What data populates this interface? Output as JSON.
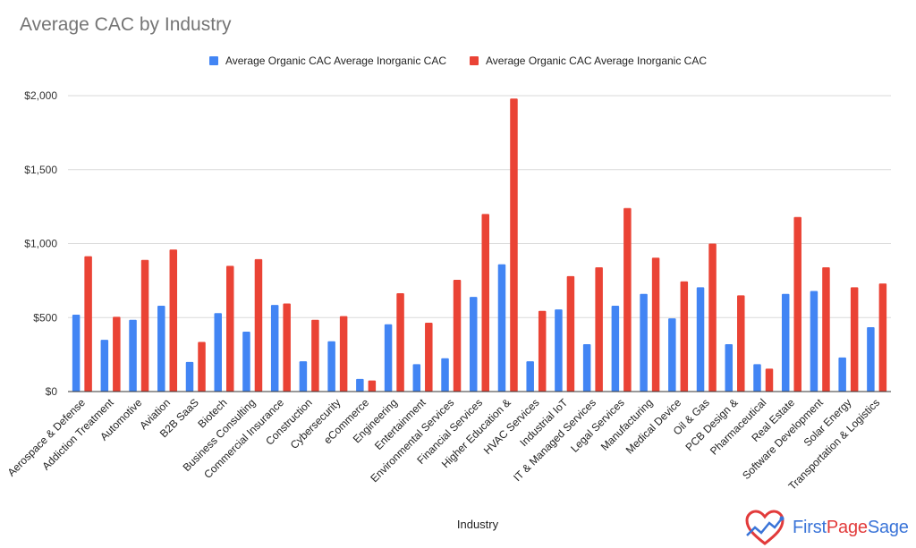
{
  "chart_data": {
    "type": "bar",
    "title": "Average CAC by Industry",
    "xlabel": "Industry",
    "ylabel": "",
    "ylim": [
      0,
      2000
    ],
    "yticks": [
      0,
      500,
      1000,
      1500,
      2000
    ],
    "ytick_labels": [
      "$0",
      "$500",
      "$1,000",
      "$1,500",
      "$2,000"
    ],
    "grid": true,
    "legend_position": "top",
    "categories": [
      "Aerospace & Defense",
      "Addiction Treatment",
      "Automotive",
      "Aviation",
      "B2B SaaS",
      "Biotech",
      "Business Consulting",
      "Commercial Insurance",
      "Construction",
      "Cybersecurity",
      "eCommerce",
      "Engineering",
      "Entertainment",
      "Environmental Services",
      "Financial Services",
      "Higher Education &",
      "HVAC Services",
      "Industrial IoT",
      "IT & Managed Services",
      "Legal Services",
      "Manufacturing",
      "Medical Device",
      "Oil & Gas",
      "PCB Design &",
      "Pharmaceutical",
      "Real Estate",
      "Software Development",
      "Solar Energy",
      "Transportation & Logistics"
    ],
    "series": [
      {
        "name": "Average Organic CAC Average Inorganic CAC",
        "color": "#4285f4",
        "values": [
          520,
          350,
          485,
          580,
          200,
          530,
          405,
          585,
          205,
          340,
          85,
          455,
          185,
          225,
          640,
          860,
          205,
          555,
          320,
          580,
          660,
          495,
          705,
          320,
          185,
          660,
          680,
          230,
          435
        ]
      },
      {
        "name": "Average Organic CAC Average Inorganic CAC",
        "color": "#ea4335",
        "values": [
          915,
          505,
          890,
          960,
          335,
          850,
          895,
          595,
          485,
          510,
          75,
          665,
          465,
          755,
          1200,
          1980,
          545,
          780,
          840,
          1240,
          905,
          745,
          1000,
          650,
          155,
          1180,
          840,
          705,
          730
        ]
      }
    ]
  },
  "branding": {
    "logo_part1": "First",
    "logo_part2": "Page",
    "logo_part3": "Sage"
  },
  "colors": {
    "grid": "#d9d9d9",
    "axis": "#333333",
    "title": "#757575"
  }
}
